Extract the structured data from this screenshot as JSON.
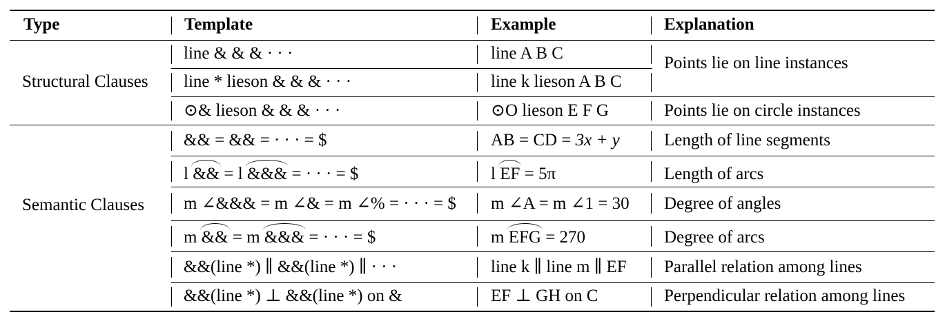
{
  "table": {
    "headers": [
      "Type",
      "Template",
      "Example",
      "Explanation"
    ],
    "groups": {
      "structural": "Structural Clauses",
      "semantic": "Semantic Clauses"
    },
    "rows": [
      {
        "template": "line & & & · · ·",
        "example": "line A B C"
      },
      {
        "template": "line * lieson & & & · · ·",
        "example": "line k lieson A B C"
      },
      {
        "template": "⊙& lieson & & & · · ·",
        "example": "⊙O lieson E F G"
      },
      {
        "template": "&& = && = · · · = $",
        "example": "AB = CD = 3x + y"
      },
      {
        "template": "l &&= l &&& = · · · = $",
        "example": "l EF = 5π"
      },
      {
        "template": "m ∠&&& = m ∠& = m ∠% = · · · = $",
        "example": "m ∠A = m ∠1 = 30"
      },
      {
        "template": "m && = m &&& = · · · = $",
        "example": "m EFG = 270"
      },
      {
        "template": "&&(line *) ∥ &&(line *) ∥ · · ·",
        "example": "line k ∥ line m ∥ EF"
      },
      {
        "template": "&&(line *) ⊥ &&(line *) on &",
        "example": "EF ⊥ GH on C"
      }
    ],
    "explanations": [
      "Points lie on line instances",
      "Points lie on circle instances",
      "Length of line segments",
      "Length of arcs",
      "Degree of angles",
      "Degree of arcs",
      "Parallel relation among lines",
      "Perpendicular relation among lines"
    ],
    "parts": {
      "r4": {
        "pre": "l ",
        "a1": "&&",
        "mid": " = l ",
        "a2": "&&&",
        "post": " = · · · = $"
      },
      "r4ex": {
        "pre": "l ",
        "arc": "EF",
        "post": " = 5π"
      },
      "r6": {
        "pre": "m ",
        "a1": "&&",
        "mid": " = m ",
        "a2": "&&&",
        "post": " = · · · = $"
      },
      "r6ex": {
        "pre": "m ",
        "arc": "EFG",
        "post": " = 270"
      },
      "r3ex": {
        "pre": "AB = CD = ",
        "expr": "3x + y"
      }
    }
  }
}
